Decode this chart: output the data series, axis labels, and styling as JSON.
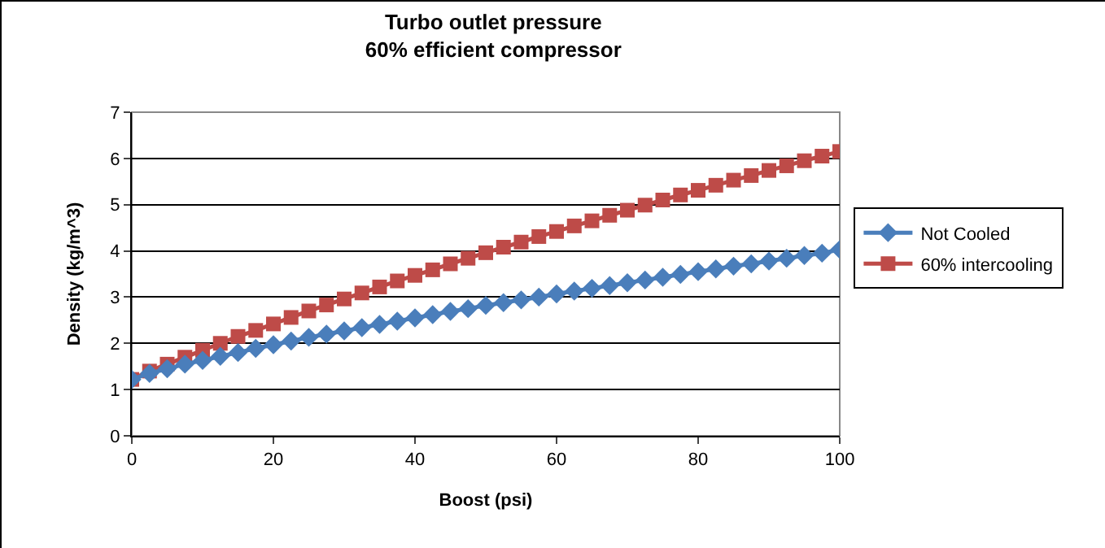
{
  "chart_data": {
    "type": "line",
    "title": "Turbo outlet pressure\n60% efficient compressor",
    "xlabel": "Boost (psi)",
    "ylabel": "Density (kg/m^3)",
    "x": [
      0,
      2.5,
      5,
      7.5,
      10,
      12.5,
      15,
      17.5,
      20,
      22.5,
      25,
      27.5,
      30,
      32.5,
      35,
      37.5,
      40,
      42.5,
      45,
      47.5,
      50,
      52.5,
      55,
      57.5,
      60,
      62.5,
      65,
      67.5,
      70,
      72.5,
      75,
      77.5,
      80,
      82.5,
      85,
      87.5,
      90,
      92.5,
      95,
      97.5,
      100
    ],
    "series": [
      {
        "name": "Not Cooled",
        "color": "#4a7ebb",
        "marker": "diamond",
        "values": [
          1.22,
          1.35,
          1.45,
          1.55,
          1.63,
          1.72,
          1.8,
          1.89,
          1.97,
          2.05,
          2.13,
          2.2,
          2.27,
          2.34,
          2.41,
          2.48,
          2.55,
          2.62,
          2.69,
          2.75,
          2.82,
          2.88,
          2.94,
          3.0,
          3.07,
          3.13,
          3.19,
          3.25,
          3.31,
          3.37,
          3.43,
          3.49,
          3.55,
          3.61,
          3.67,
          3.72,
          3.78,
          3.84,
          3.9,
          3.95,
          4.03
        ]
      },
      {
        "name": "60% intercooling",
        "color": "#be4b48",
        "marker": "square",
        "values": [
          1.22,
          1.4,
          1.55,
          1.7,
          1.85,
          2.0,
          2.15,
          2.28,
          2.42,
          2.56,
          2.7,
          2.83,
          2.96,
          3.09,
          3.22,
          3.35,
          3.47,
          3.59,
          3.72,
          3.84,
          3.96,
          4.08,
          4.19,
          4.31,
          4.42,
          4.54,
          4.65,
          4.77,
          4.88,
          4.99,
          5.1,
          5.21,
          5.31,
          5.42,
          5.53,
          5.63,
          5.74,
          5.84,
          5.95,
          6.05,
          6.15
        ]
      }
    ],
    "xlim": [
      0,
      100
    ],
    "xticks": [
      0,
      20,
      40,
      60,
      80,
      100
    ],
    "ylim": [
      0,
      7
    ],
    "yticks": [
      0,
      1,
      2,
      3,
      4,
      5,
      6,
      7
    ],
    "grid": "y",
    "legend": "right"
  }
}
